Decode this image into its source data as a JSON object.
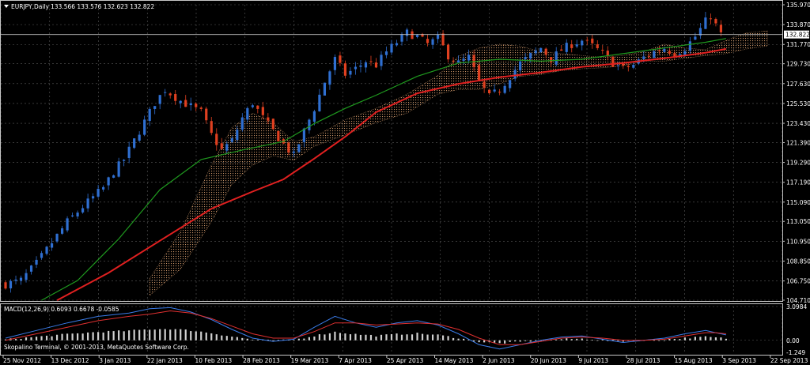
{
  "header": {
    "symbol_timeframe": "EURJPY,Daily",
    "ohlc": "133.566 133.576 132.623 132.822"
  },
  "macd": {
    "label": "MACD(12,26,9) 0.6093 0.6678 -0.0585"
  },
  "copyright": "Skopalino Terminal, © 2001-2013, MetaQuotes Software Corp.",
  "colors": {
    "background": "#000000",
    "grid": "#5a5a5a",
    "bull_candle": "#2f6fd1",
    "bear_candle": "#e04020",
    "ma_fast": "#e02020",
    "ma_slow": "#1f9a1f",
    "cloud": "#d9a070",
    "macd_line": "#3a7be8",
    "signal_line": "#e03030",
    "histogram": "#d0d0d0",
    "price_line": "#c0c0c0"
  },
  "chart_data": [
    {
      "type": "candlestick",
      "title": "EURJPY,Daily",
      "ylim": [
        104.71,
        135.97
      ],
      "y_ticks": [
        "135.970",
        "133.870",
        "131.770",
        "129.730",
        "127.630",
        "125.530",
        "123.430",
        "121.390",
        "119.290",
        "117.190",
        "115.090",
        "113.050",
        "110.950",
        "108.850",
        "106.750",
        "104.710"
      ],
      "current_price": "132.822",
      "x_ticks": [
        "25 Nov 2012",
        "13 Dec 2012",
        "3 Jan 2013",
        "22 Jan 2013",
        "10 Feb 2013",
        "28 Feb 2013",
        "19 Mar 2013",
        "7 Apr 2013",
        "25 Apr 2013",
        "14 May 2013",
        "2 Jun 2013",
        "20 Jun 2013",
        "9 Jul 2013",
        "28 Jul 2013",
        "15 Aug 2013",
        "3 Sep 2013",
        "22 Sep 2013"
      ],
      "close_path": [
        [
          0,
          106.4
        ],
        [
          3,
          106.8
        ],
        [
          6,
          108.6
        ],
        [
          9,
          110.8
        ],
        [
          12,
          113.0
        ],
        [
          15,
          114.6
        ],
        [
          17,
          115.6
        ],
        [
          19,
          116.6
        ],
        [
          21,
          118.3
        ],
        [
          23,
          119.6
        ],
        [
          25,
          121.6
        ],
        [
          27,
          123.6
        ],
        [
          29,
          125.6
        ],
        [
          31,
          127.0
        ],
        [
          32,
          126.6
        ],
        [
          34,
          125.8
        ],
        [
          36,
          125.2
        ],
        [
          38,
          124.6
        ],
        [
          40,
          122.2
        ],
        [
          42,
          120.6
        ],
        [
          44,
          121.6
        ],
        [
          46,
          124.0
        ],
        [
          48,
          125.6
        ],
        [
          50,
          124.0
        ],
        [
          52,
          122.6
        ],
        [
          54,
          121.2
        ],
        [
          56,
          120.0
        ],
        [
          58,
          122.6
        ],
        [
          60,
          125.0
        ],
        [
          62,
          127.8
        ],
        [
          64,
          130.2
        ],
        [
          66,
          128.6
        ],
        [
          68,
          129.2
        ],
        [
          70,
          130.0
        ],
        [
          72,
          129.6
        ],
        [
          74,
          131.0
        ],
        [
          76,
          132.0
        ],
        [
          78,
          133.0
        ],
        [
          80,
          132.6
        ],
        [
          82,
          131.8
        ],
        [
          84,
          132.4
        ],
        [
          86,
          130.6
        ],
        [
          88,
          129.8
        ],
        [
          90,
          130.4
        ],
        [
          92,
          127.8
        ],
        [
          94,
          126.2
        ],
        [
          96,
          127.0
        ],
        [
          98,
          128.4
        ],
        [
          100,
          129.8
        ],
        [
          102,
          130.6
        ],
        [
          104,
          131.4
        ],
        [
          106,
          130.2
        ],
        [
          108,
          131.2
        ],
        [
          110,
          131.8
        ],
        [
          112,
          132.2
        ],
        [
          114,
          131.6
        ],
        [
          116,
          130.8
        ],
        [
          118,
          129.8
        ],
        [
          120,
          129.2
        ],
        [
          122,
          129.6
        ],
        [
          124,
          130.4
        ],
        [
          126,
          131.0
        ],
        [
          128,
          131.4
        ],
        [
          130,
          130.8
        ],
        [
          132,
          131.4
        ],
        [
          134,
          132.6
        ],
        [
          136,
          134.2
        ],
        [
          137,
          134.8
        ],
        [
          138,
          133.8
        ],
        [
          139,
          132.8
        ]
      ],
      "series": [
        {
          "name": "",
          "color_key": "ma_fast",
          "points": [
            [
              10,
              104.7
            ],
            [
              20,
              107.6
            ],
            [
              30,
              111.0
            ],
            [
              40,
              114.4
            ],
            [
              48,
              116.2
            ],
            [
              54,
              117.5
            ],
            [
              60,
              119.7
            ],
            [
              66,
              122.0
            ],
            [
              72,
              124.6
            ],
            [
              80,
              126.6
            ],
            [
              88,
              127.6
            ],
            [
              96,
              128.3
            ],
            [
              104,
              128.8
            ],
            [
              112,
              129.4
            ],
            [
              120,
              129.8
            ],
            [
              128,
              130.3
            ],
            [
              136,
              130.9
            ],
            [
              140,
              131.3
            ]
          ]
        },
        {
          "name": "",
          "color_key": "ma_slow",
          "points": [
            [
              7,
              104.7
            ],
            [
              14,
              106.8
            ],
            [
              22,
              111.2
            ],
            [
              30,
              116.4
            ],
            [
              38,
              119.6
            ],
            [
              46,
              120.6
            ],
            [
              54,
              121.5
            ],
            [
              60,
              123.4
            ],
            [
              66,
              125.0
            ],
            [
              72,
              126.4
            ],
            [
              80,
              128.4
            ],
            [
              88,
              129.8
            ],
            [
              96,
              130.2
            ],
            [
              104,
              130.0
            ],
            [
              112,
              130.2
            ],
            [
              120,
              130.8
            ],
            [
              128,
              131.4
            ],
            [
              136,
              132.0
            ],
            [
              140,
              132.4
            ]
          ]
        }
      ],
      "cloud": [
        [
          28,
          107.0,
          105.2
        ],
        [
          34,
          112.0,
          108.0
        ],
        [
          40,
          119.0,
          113.0
        ],
        [
          44,
          123.0,
          117.0
        ],
        [
          48,
          124.5,
          119.0
        ],
        [
          52,
          123.5,
          120.0
        ],
        [
          56,
          121.5,
          119.5
        ],
        [
          60,
          122.0,
          121.0
        ],
        [
          66,
          123.8,
          122.2
        ],
        [
          72,
          125.0,
          123.5
        ],
        [
          78,
          126.5,
          124.5
        ],
        [
          84,
          128.5,
          126.5
        ],
        [
          88,
          130.5,
          127.0
        ],
        [
          92,
          131.4,
          127.0
        ],
        [
          96,
          131.8,
          127.6
        ],
        [
          100,
          131.6,
          128.4
        ],
        [
          104,
          131.0,
          128.6
        ],
        [
          108,
          130.8,
          129.0
        ],
        [
          112,
          130.6,
          129.2
        ],
        [
          116,
          130.4,
          129.3
        ],
        [
          120,
          130.6,
          129.5
        ],
        [
          124,
          131.0,
          130.0
        ],
        [
          128,
          131.8,
          130.0
        ],
        [
          132,
          131.4,
          130.3
        ],
        [
          136,
          131.2,
          130.6
        ],
        [
          140,
          132.2,
          130.8
        ],
        [
          144,
          133.0,
          131.3
        ],
        [
          148,
          133.2,
          131.6
        ]
      ]
    },
    {
      "type": "line",
      "title": "MACD(12,26,9) 0.6093 0.6678 -0.0585",
      "ylim": [
        -1.249,
        3.0984
      ],
      "y_ticks": [
        "3.0984",
        "0.00",
        "-1.249"
      ],
      "series": [
        {
          "name": "",
          "color_key": "macd_line",
          "points": [
            [
              0,
              0.2
            ],
            [
              6,
              0.9
            ],
            [
              12,
              1.6
            ],
            [
              18,
              2.2
            ],
            [
              24,
              2.5
            ],
            [
              28,
              2.9
            ],
            [
              32,
              3.0
            ],
            [
              36,
              2.6
            ],
            [
              40,
              1.9
            ],
            [
              44,
              1.0
            ],
            [
              48,
              0.2
            ],
            [
              52,
              -0.1
            ],
            [
              56,
              0.1
            ],
            [
              60,
              1.2
            ],
            [
              64,
              2.2
            ],
            [
              68,
              1.6
            ],
            [
              72,
              1.2
            ],
            [
              76,
              1.6
            ],
            [
              80,
              1.8
            ],
            [
              84,
              1.4
            ],
            [
              88,
              0.6
            ],
            [
              92,
              -0.4
            ],
            [
              96,
              -0.8
            ],
            [
              100,
              -0.4
            ],
            [
              104,
              0.0
            ],
            [
              108,
              0.3
            ],
            [
              112,
              0.4
            ],
            [
              116,
              0.1
            ],
            [
              120,
              -0.2
            ],
            [
              124,
              0.0
            ],
            [
              128,
              0.2
            ],
            [
              132,
              0.6
            ],
            [
              136,
              0.9
            ],
            [
              138,
              0.7
            ],
            [
              140,
              0.5
            ]
          ]
        },
        {
          "name": "",
          "color_key": "signal_line",
          "points": [
            [
              0,
              0.0
            ],
            [
              6,
              0.6
            ],
            [
              12,
              1.2
            ],
            [
              18,
              1.8
            ],
            [
              24,
              2.2
            ],
            [
              28,
              2.4
            ],
            [
              32,
              2.7
            ],
            [
              36,
              2.5
            ],
            [
              40,
              2.0
            ],
            [
              44,
              1.3
            ],
            [
              48,
              0.6
            ],
            [
              52,
              0.2
            ],
            [
              56,
              0.2
            ],
            [
              60,
              0.8
            ],
            [
              64,
              1.6
            ],
            [
              68,
              1.6
            ],
            [
              72,
              1.4
            ],
            [
              76,
              1.5
            ],
            [
              80,
              1.6
            ],
            [
              84,
              1.5
            ],
            [
              88,
              1.0
            ],
            [
              92,
              0.2
            ],
            [
              96,
              -0.4
            ],
            [
              100,
              -0.4
            ],
            [
              104,
              -0.1
            ],
            [
              108,
              0.2
            ],
            [
              112,
              0.3
            ],
            [
              116,
              0.2
            ],
            [
              120,
              0.0
            ],
            [
              124,
              0.0
            ],
            [
              128,
              0.1
            ],
            [
              132,
              0.4
            ],
            [
              136,
              0.7
            ],
            [
              138,
              0.7
            ],
            [
              140,
              0.6
            ]
          ]
        }
      ]
    }
  ]
}
